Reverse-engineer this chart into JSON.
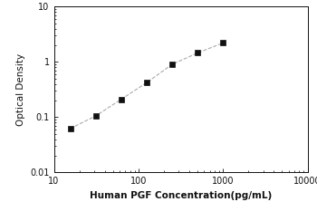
{
  "x_data": [
    15.6,
    31.2,
    62.5,
    125,
    250,
    500,
    1000
  ],
  "y_data": [
    0.062,
    0.105,
    0.21,
    0.42,
    0.9,
    1.45,
    2.2
  ],
  "xlabel": "Human PGF Concentration(pg/mL)",
  "ylabel": "Optical Density",
  "xlim": [
    10,
    10000
  ],
  "ylim": [
    0.01,
    10
  ],
  "xticks": [
    10,
    100,
    1000,
    10000
  ],
  "yticks": [
    0.01,
    0.1,
    1,
    10
  ],
  "marker": "s",
  "marker_color": "#111111",
  "marker_size": 4,
  "line_color": "#aaaaaa",
  "line_style": "--",
  "line_width": 0.8,
  "background_color": "#ffffff",
  "font_color": "#111111",
  "label_fontsize": 7.5,
  "tick_fontsize": 7,
  "xlabel_fontweight": "bold"
}
